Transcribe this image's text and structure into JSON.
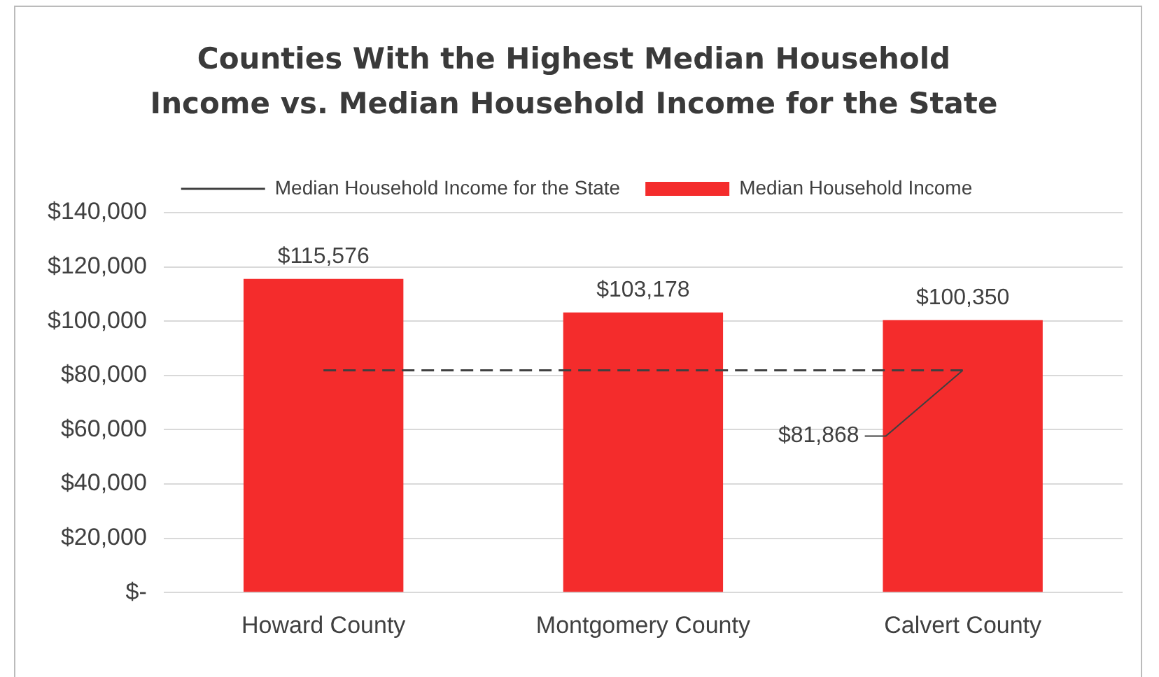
{
  "chart_data": {
    "type": "bar",
    "title": "Counties With the Highest Median Household Income vs. Median Household Income for the State",
    "categories": [
      "Howard County",
      "Montgomery County",
      "Calvert County"
    ],
    "series": [
      {
        "name": "Median Household Income",
        "color": "#f42c2c",
        "values": [
          115576,
          103178,
          100350
        ],
        "value_labels": [
          "$115,576",
          "$103,178",
          "$100,350"
        ]
      },
      {
        "name": "Median Household Income for the State",
        "type": "line",
        "line_style": "dashed",
        "color": "#404040",
        "values": [
          81868,
          81868,
          81868
        ],
        "value_labels": [
          null,
          null,
          "$81,868"
        ]
      }
    ],
    "ylim": [
      0,
      140000
    ],
    "yticks": [
      {
        "value": 0,
        "label": "$-"
      },
      {
        "value": 20000,
        "label": "$20,000"
      },
      {
        "value": 40000,
        "label": "$40,000"
      },
      {
        "value": 60000,
        "label": "$60,000"
      },
      {
        "value": 80000,
        "label": "$80,000"
      },
      {
        "value": 100000,
        "label": "$100,000"
      },
      {
        "value": 120000,
        "label": "$120,000"
      },
      {
        "value": 140000,
        "label": "$140,000"
      }
    ],
    "grid": "y",
    "legend": "top"
  }
}
